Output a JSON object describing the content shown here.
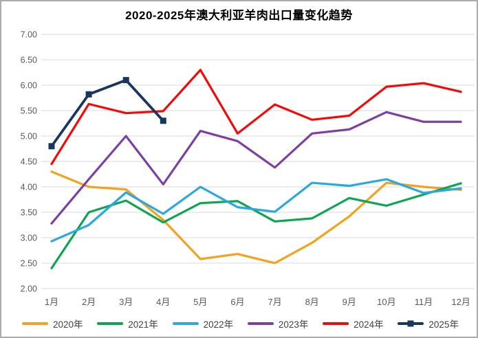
{
  "title": "2020-2025年澳大利亚羊肉出口量变化趋势",
  "chart_data": {
    "type": "line",
    "title": "2020-2025年澳大利亚羊肉出口量变化趋势",
    "categories": [
      "1月",
      "2月",
      "3月",
      "4月",
      "5月",
      "6月",
      "7月",
      "8月",
      "9月",
      "10月",
      "11月",
      "12月"
    ],
    "series": [
      {
        "name": "2020年",
        "color": "#F7A11A",
        "marker": "none",
        "values": [
          4.3,
          4.0,
          3.95,
          3.35,
          2.58,
          2.68,
          2.5,
          2.9,
          3.42,
          4.08,
          4.0,
          3.94
        ]
      },
      {
        "name": "2021年",
        "color": "#0CA550",
        "marker": "none",
        "values": [
          2.4,
          3.5,
          3.73,
          3.3,
          3.68,
          3.72,
          3.32,
          3.38,
          3.78,
          3.63,
          3.85,
          4.07
        ]
      },
      {
        "name": "2022年",
        "color": "#29A9E1",
        "marker": "none",
        "values": [
          2.93,
          3.25,
          3.89,
          3.47,
          4.0,
          3.6,
          3.51,
          4.08,
          4.02,
          4.15,
          3.88,
          3.97
        ]
      },
      {
        "name": "2023年",
        "color": "#7D3FA4",
        "marker": "none",
        "values": [
          3.28,
          4.15,
          5.0,
          4.05,
          5.1,
          4.9,
          4.38,
          5.05,
          5.13,
          5.47,
          5.28,
          5.28
        ]
      },
      {
        "name": "2024年",
        "color": "#F90606",
        "marker": "none",
        "values": [
          4.45,
          5.63,
          5.45,
          5.49,
          6.3,
          5.05,
          5.62,
          5.32,
          5.4,
          5.97,
          6.04,
          5.87
        ]
      },
      {
        "name": "2025年",
        "color": "#17375E",
        "marker": "square",
        "values": [
          4.8,
          5.82,
          6.1,
          5.3
        ]
      }
    ],
    "xlabel": "",
    "ylabel": "",
    "ylim": [
      2.0,
      7.0
    ],
    "ytick_step": 0.5,
    "ytick_decimals": 2,
    "grid": true,
    "gridline_color": "#D9D9D9",
    "tick_label_color": "#595959",
    "legend_position": "bottom"
  }
}
